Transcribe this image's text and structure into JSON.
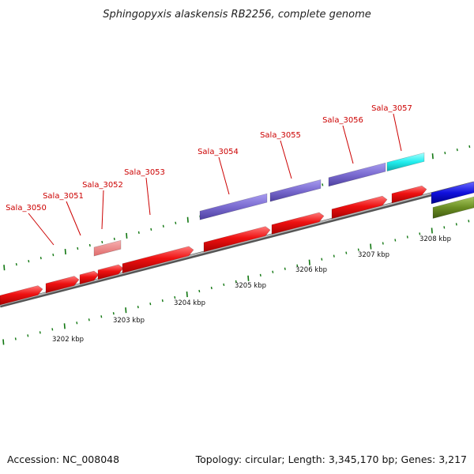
{
  "title": "Sphingopyxis alaskensis RB2256, complete genome",
  "footer": {
    "accession": "Accession: NC_008048",
    "stats": "Topology: circular; Length: 3,345,170 bp; Genes: 3,217"
  },
  "scale_labels": [
    "3202 kbp",
    "3203 kbp",
    "3204 kbp",
    "3205 kbp",
    "3206 kbp",
    "3207 kbp",
    "3208 kbp"
  ],
  "gene_labels": [
    "Sala_3050",
    "Sala_3051",
    "Sala_3052",
    "Sala_3053",
    "Sala_3054",
    "Sala_3055",
    "Sala_3056",
    "Sala_3057"
  ],
  "colors": {
    "red_gene": "#ee1111",
    "salmon_gene": "#f08080",
    "purple_gene": "#7a6bd0",
    "cyan_gene": "#22eeee",
    "blue_gene": "#1111dd",
    "olive_gene": "#6b8e23",
    "backbone": "#888888",
    "tick_green": "#117711",
    "label_red": "#cc0000"
  }
}
